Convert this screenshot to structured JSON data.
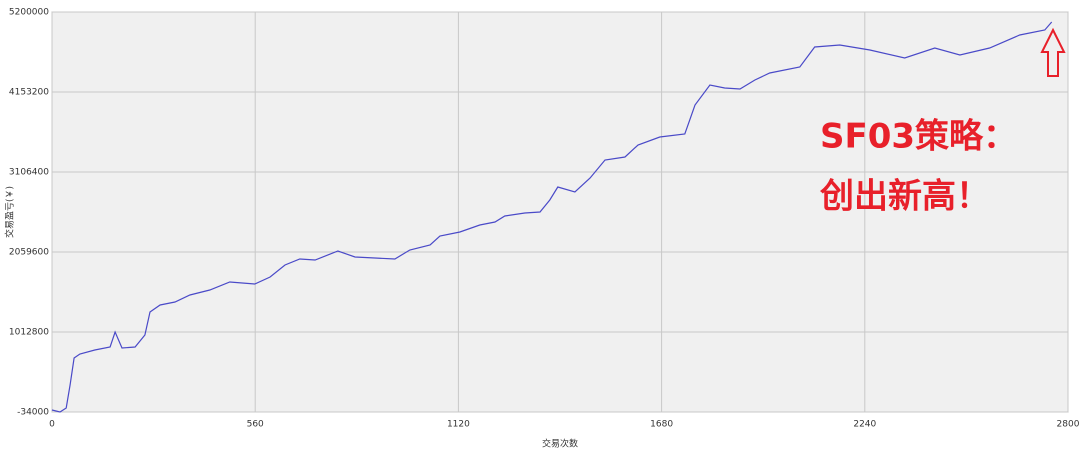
{
  "chart_data": {
    "type": "line",
    "x_label": "交易次数",
    "y_label": "交易盈亏(￥)",
    "annotations": [
      "SF03策略：",
      "创出新高！"
    ],
    "x": [
      0,
      22,
      39,
      50,
      61,
      77,
      118,
      160,
      174,
      193,
      229,
      256,
      270,
      298,
      339,
      380,
      435,
      490,
      559,
      601,
      642,
      683,
      725,
      788,
      835,
      890,
      945,
      986,
      1042,
      1069,
      1124,
      1179,
      1221,
      1248,
      1303,
      1345,
      1372,
      1394,
      1441,
      1483,
      1524,
      1579,
      1615,
      1675,
      1744,
      1772,
      1813,
      1854,
      1896,
      1937,
      1978,
      2061,
      2102,
      2171,
      2254,
      2350,
      2433,
      2502,
      2584,
      2667,
      2736,
      2755
    ],
    "series": [
      {
        "color": "#4a4ac8",
        "values": [
          -8000,
          -34000,
          18000,
          320000,
          673000,
          725000,
          777000,
          816000,
          1013000,
          803000,
          816000,
          974000,
          1274000,
          1366000,
          1405000,
          1497000,
          1562000,
          1667000,
          1641000,
          1732000,
          1889000,
          1968000,
          1955000,
          2073000,
          1994000,
          1981000,
          1968000,
          2086000,
          2151000,
          2269000,
          2321000,
          2413000,
          2452000,
          2531000,
          2570000,
          2583000,
          2740000,
          2910000,
          2845000,
          3028000,
          3264000,
          3303000,
          3460000,
          3564000,
          3604000,
          3983000,
          4245000,
          4206000,
          4193000,
          4310000,
          4402000,
          4480000,
          4742000,
          4768000,
          4703000,
          4598000,
          4729000,
          4637000,
          4729000,
          4899000,
          4964000,
          5069000
        ]
      }
    ],
    "xlim": [
      0,
      2800
    ],
    "xticks": [
      0,
      560,
      1120,
      1680,
      2240,
      2800
    ],
    "ylim": [
      -34000,
      5200000
    ],
    "yticks": [
      -34000,
      1012800,
      2059600,
      3106400,
      4153200,
      5200000
    ],
    "grid": true
  }
}
